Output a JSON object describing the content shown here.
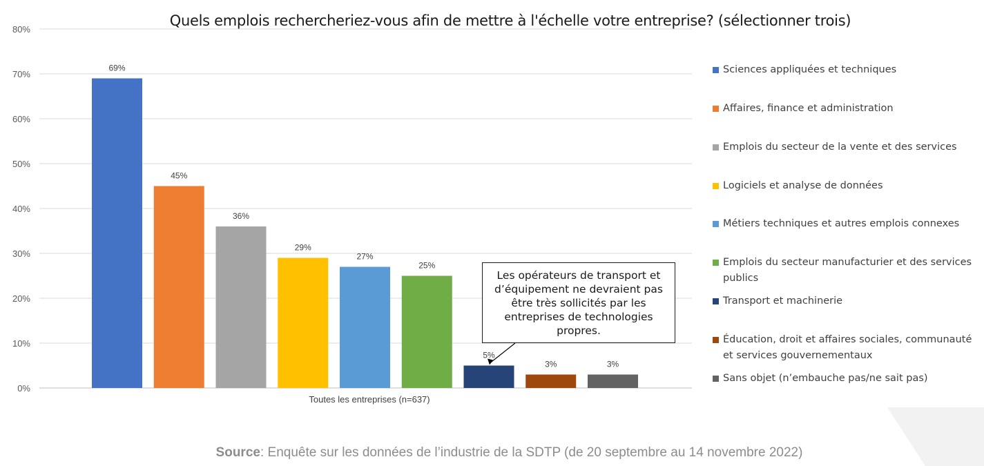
{
  "chart_data": {
    "type": "bar",
    "title": "Quels emplois rechercheriez-vous afin de mettre à l'échelle votre entreprise? (sélectionner trois)",
    "categories": [
      "Toutes les entreprises (n=637)"
    ],
    "series": [
      {
        "name": "Sciences appliquées et techniques",
        "value": 69,
        "label": "69%",
        "color": "#4472C4"
      },
      {
        "name": "Affaires, finance et administration",
        "value": 45,
        "label": "45%",
        "color": "#ED7D31"
      },
      {
        "name": "Emplois du secteur de la vente et des services",
        "value": 36,
        "label": "36%",
        "color": "#A5A5A5"
      },
      {
        "name": "Logiciels et analyse de données",
        "value": 29,
        "label": "29%",
        "color": "#FFC000"
      },
      {
        "name": "Métiers techniques et autres emplois connexes",
        "value": 27,
        "label": "27%",
        "color": "#5B9BD5"
      },
      {
        "name": "Emplois du secteur manufacturier et des services publics",
        "value": 25,
        "label": "25%",
        "color": "#70AD47"
      },
      {
        "name": "Transport et machinerie",
        "value": 5,
        "label": "5%",
        "color": "#264478"
      },
      {
        "name": "Éducation, droit et affaires sociales, communauté et services gouvernementaux",
        "value": 3,
        "label": "3%",
        "color": "#9E480E"
      },
      {
        "name": "Sans objet (n’embauche pas/ne sait pas)",
        "value": 3,
        "label": "3%",
        "color": "#636363"
      }
    ],
    "yticks": [
      "0%",
      "10%",
      "20%",
      "30%",
      "40%",
      "50%",
      "60%",
      "70%",
      "80%"
    ],
    "ylim": [
      0,
      80
    ],
    "grid": true,
    "legend_position": "right",
    "annotation": "Les opérateurs de transport et d’équipement ne devraient pas être très sollicités par les entreprises de technologies propres."
  },
  "source": {
    "label": "Source",
    "text": ": Enquête sur les données de l’industrie de la SDTP (de 20 septembre au 14 novembre 2022)"
  }
}
